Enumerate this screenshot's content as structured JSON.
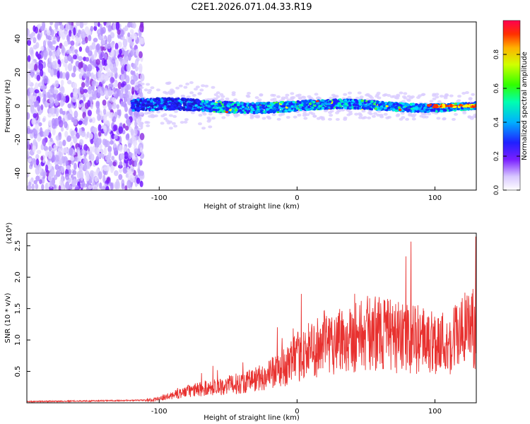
{
  "title": "C2E1.2026.071.04.33.R19",
  "chart_data": [
    {
      "type": "heatmap",
      "xlabel": "Height of straight line (km)",
      "ylabel": "Frequency (Hz)",
      "xlim": [
        -196,
        130
      ],
      "ylim": [
        -50,
        50
      ],
      "xticks": [
        -100,
        0,
        100
      ],
      "yticks": [
        -40,
        -20,
        0,
        20,
        40
      ],
      "colorbar": {
        "label": "Normalized spectral amplitude",
        "range": [
          0,
          1
        ],
        "ticks": [
          0.0,
          0.2,
          0.4,
          0.6,
          0.8
        ],
        "colormap": "rainbow"
      },
      "description_ranges": {
        "diffuse_noise_x": [
          -196,
          -112
        ],
        "signal_band_x": [
          -120,
          130
        ],
        "signal_center_hz": 0
      }
    },
    {
      "type": "line",
      "xlabel": "Height of straight line (km)",
      "ylabel": "SNR (10 * v/v)",
      "y_multiplier": "(x10⁴)",
      "xlim": [
        -196,
        130
      ],
      "ylim": [
        0,
        2.7
      ],
      "xticks": [
        -100,
        0,
        100
      ],
      "yticks": [
        0.5,
        1.0,
        1.5,
        2.0,
        2.5
      ],
      "series": [
        {
          "color": "#e8312f",
          "x": [
            -196,
            -150,
            -110,
            -100,
            -90,
            -80,
            -70,
            -60,
            -50,
            -40,
            -30,
            -20,
            -10,
            0,
            10,
            20,
            30,
            40,
            50,
            60,
            70,
            80,
            90,
            100,
            110,
            120,
            130
          ],
          "y": [
            0.02,
            0.03,
            0.04,
            0.06,
            0.12,
            0.18,
            0.22,
            0.25,
            0.28,
            0.32,
            0.38,
            0.45,
            0.55,
            0.72,
            0.85,
            0.95,
            1.02,
            1.05,
            1.1,
            1.12,
            1.05,
            1.02,
            1.0,
            0.98,
            0.95,
            1.15,
            1.18
          ]
        }
      ]
    }
  ]
}
